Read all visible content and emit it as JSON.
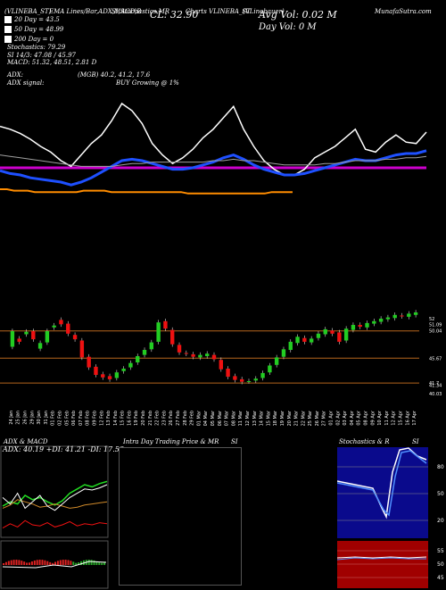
{
  "header": {
    "ticker_line": "(VLINEBA_ST)",
    "indicators_text": "EMA Lines/Bar,ADX,MACD,B",
    "stoch_text": "SI,Stochastics,MR",
    "close": "CL: 32.90",
    "avg_vol": "Avg Vol: 0.02  M",
    "day_vol": "Day Vol: 0  M",
    "chart_name": "Charts VLINEBA_ST",
    "right_text": "(VLinebauer)",
    "site": "MunafaSutra.com"
  },
  "legend": [
    {
      "label": "20  Day = 43.5",
      "color": "#ffffff"
    },
    {
      "label": "50  Day = 48.99",
      "color": "#ffffff"
    },
    {
      "label": "200  Day = 0",
      "color": "#ffffff"
    }
  ],
  "stats": {
    "stochastics": "Stochastics: 79.29",
    "si": "SI 14/3: 47.08 / 45.97",
    "macd": "MACD: 51.32, 48.51, 2.81 D",
    "adx": "ADX:",
    "adx_values": "(MGB) 40.2, 41.2, 17.6",
    "adx_signal_label": "ADX signal:",
    "adx_signal": "BUY Growing @ 1%"
  },
  "colors": {
    "ema_orange": "#ff8c00",
    "ema_blue": "#1e50ff",
    "ema_white": "#ffffff",
    "ema_gray": "#a0a0a0",
    "magenta": "#cc00cc",
    "bull": "#22cc22",
    "bear": "#ee1111",
    "grid": "#b5651d"
  },
  "chart_data": [
    {
      "type": "line",
      "title": "",
      "series": [
        {
          "values": [
            74,
            72,
            69,
            65,
            60,
            56,
            50,
            46,
            54,
            62,
            68,
            78,
            90,
            85,
            76,
            62,
            54,
            48,
            52,
            58,
            66,
            72,
            80,
            88,
            72,
            60,
            50,
            44,
            40,
            40,
            44,
            52,
            56,
            60,
            66,
            72,
            58,
            56,
            63,
            68,
            63,
            62,
            70
          ]
        },
        {
          "values": [
            43,
            41,
            40,
            38,
            37,
            36,
            35,
            33,
            35,
            38,
            42,
            46,
            50,
            51,
            50,
            48,
            46,
            44,
            44,
            45,
            47,
            49,
            52,
            54,
            51,
            47,
            44,
            42,
            40,
            40,
            41,
            43,
            45,
            47,
            49,
            51,
            50,
            50,
            52,
            54,
            55,
            55,
            57
          ]
        },
        {
          "values": [
            30,
            30,
            29,
            29,
            29,
            28,
            28,
            28,
            28,
            28,
            28,
            28,
            29,
            29,
            29,
            29,
            28,
            28,
            28,
            28,
            28,
            28,
            28,
            28,
            28,
            28,
            28,
            27,
            27,
            27,
            27,
            27,
            27,
            27,
            27,
            27,
            27,
            27,
            27,
            28,
            28,
            28,
            28
          ]
        },
        {
          "values": [
            54,
            53,
            52,
            51,
            50,
            49,
            48,
            47,
            46,
            46,
            46,
            46,
            47,
            48,
            48,
            49,
            49,
            49,
            49,
            49,
            49,
            50,
            50,
            51,
            50,
            50,
            49,
            48,
            47,
            47,
            47,
            47,
            48,
            48,
            49,
            50,
            50,
            50,
            51,
            51,
            52,
            52,
            53
          ]
        }
      ]
    },
    {
      "type": "bar",
      "title": "",
      "categories": [
        "24 Jan",
        "25 Jan",
        "26 Jan",
        "29 Jan",
        "30 Jan",
        "31 Jan",
        "01 Feb",
        "02 Feb",
        "05 Feb",
        "06 Feb",
        "07 Feb",
        "08 Feb",
        "09 Feb",
        "12 Feb",
        "13 Feb",
        "14 Feb",
        "15 Feb",
        "16 Feb",
        "19 Feb",
        "20 Feb",
        "21 Feb",
        "22 Feb",
        "23 Feb",
        "26 Feb",
        "27 Feb",
        "28 Feb",
        "29 Feb",
        "01 Mar",
        "04 Mar",
        "05 Mar",
        "06 Mar",
        "07 Mar",
        "08 Mar",
        "11 Mar",
        "12 Mar",
        "13 Mar",
        "14 Mar",
        "15 Mar",
        "18 Mar",
        "19 Mar",
        "20 Mar",
        "21 Mar",
        "22 Mar",
        "25 Mar",
        "26 Mar",
        "27 Mar",
        "01 Apr",
        "02 Apr",
        "03 Apr",
        "04 Apr",
        "05 Apr",
        "08 Apr",
        "09 Apr",
        "10 Apr",
        "11 Apr",
        "12 Apr",
        "15 Apr",
        "16 Apr",
        "17 Apr"
      ],
      "yticks": [
        "52",
        "51.09",
        "50.04",
        "45.67",
        "41.7",
        "41.34",
        "40.03"
      ],
      "ylim": [
        38,
        53
      ]
    }
  ],
  "bottom": {
    "adx_title": "ADX & MACD",
    "adx_overlay": "ADX: 40.19 +DI: 41.21 -DI: 17.58",
    "intraday_title": "Intra Day Trading Price & MR",
    "intraday_si": "SI",
    "stoch_title": "Stochastics & R",
    "stoch_si": "SI",
    "stoch_ticks": [
      "80",
      "50",
      "20"
    ],
    "si_ticks": [
      "55",
      "50",
      "45"
    ]
  }
}
